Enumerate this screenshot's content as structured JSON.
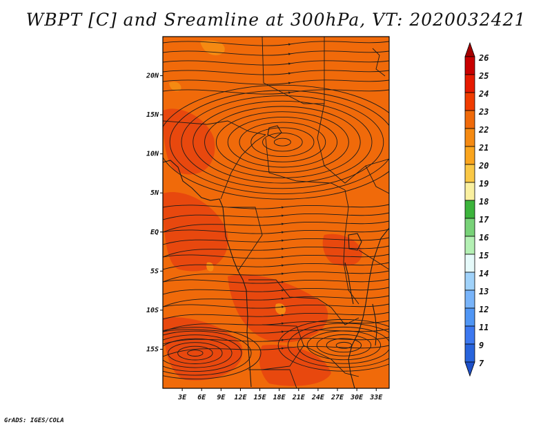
{
  "title": "WBPT [C] and Sreamline at 300hPa, VT: 2020032421",
  "credit": "GrADS: IGES/COLA",
  "map": {
    "fill_color": "#f06a0a",
    "patch_colors": [
      "#e8480e",
      "#f58a12"
    ],
    "y_ticks": [
      "20N",
      "15N",
      "10N",
      "5N",
      "EQ",
      "5S",
      "10S",
      "15S"
    ],
    "y_tick_lat": [
      20,
      15,
      10,
      5,
      0,
      -5,
      -10,
      -15
    ],
    "x_ticks": [
      "3E",
      "6E",
      "9E",
      "12E",
      "15E",
      "18E",
      "21E",
      "24E",
      "27E",
      "30E",
      "33E"
    ],
    "x_tick_lon": [
      3,
      6,
      9,
      12,
      15,
      18,
      21,
      24,
      27,
      30,
      33
    ],
    "lon_range": [
      0,
      35
    ],
    "lat_range": [
      -20,
      25
    ]
  },
  "colorbar": {
    "labels": [
      "26",
      "25",
      "24",
      "23",
      "22",
      "21",
      "20",
      "19",
      "18",
      "17",
      "16",
      "15",
      "14",
      "13",
      "12",
      "11",
      "9",
      "7"
    ],
    "colors": [
      "#a50000",
      "#c80000",
      "#e61a00",
      "#f03c00",
      "#f06a0a",
      "#f58a12",
      "#faa51e",
      "#fac846",
      "#faf0a0",
      "#3cb43c",
      "#78d278",
      "#b4f0b4",
      "#e6fafa",
      "#a0d2fa",
      "#78b4fa",
      "#5096f5",
      "#3c78f0",
      "#2864dc",
      "#1e50c8"
    ]
  },
  "chart_data": {
    "type": "heatmap",
    "title": "WBPT [C] and Sreamline at 300hPa, VT: 2020032421",
    "variable": "Wet-bulb potential temperature [C] with streamlines at 300hPa",
    "valid_time": "2020032421",
    "x": [
      "3E",
      "6E",
      "9E",
      "12E",
      "15E",
      "18E",
      "21E",
      "24E",
      "27E",
      "30E",
      "33E"
    ],
    "y": [
      "20N",
      "15N",
      "10N",
      "5N",
      "EQ",
      "5S",
      "10S",
      "15S"
    ],
    "xlim": [
      0,
      35
    ],
    "ylim": [
      -20,
      25
    ],
    "dominant_range": [
      22,
      24
    ],
    "legend": "right",
    "colorbar_levels": [
      7,
      9,
      11,
      12,
      13,
      14,
      15,
      16,
      17,
      18,
      19,
      20,
      21,
      22,
      23,
      24,
      25,
      26
    ]
  }
}
